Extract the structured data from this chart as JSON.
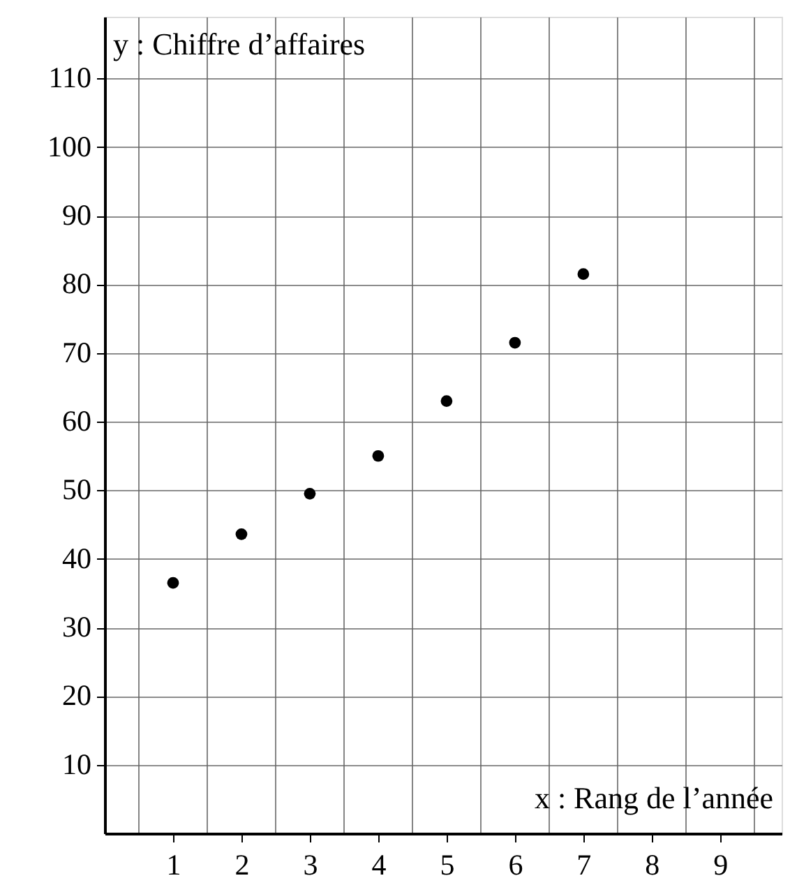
{
  "chart_data": {
    "type": "scatter",
    "xlabel": "x : Rang de l’année",
    "ylabel": "y : Chiffre d’affaires",
    "x": [
      1,
      2,
      3,
      4,
      5,
      6,
      7
    ],
    "series": [
      {
        "color": "#000000",
        "values": [
          36.5,
          43.6,
          49.5,
          55,
          63,
          71.5,
          81.5
        ]
      }
    ],
    "xlim": [
      0,
      9.9
    ],
    "ylim": [
      0,
      119
    ],
    "xticks": [
      {
        "value": 0.5,
        "label": null
      },
      1,
      {
        "value": 1.5,
        "label": null
      },
      2,
      {
        "value": 2.5,
        "label": null
      },
      3,
      {
        "value": 3.5,
        "label": null
      },
      4,
      {
        "value": 4.5,
        "label": null
      },
      5,
      {
        "value": 5.5,
        "label": null
      },
      6,
      {
        "value": 6.5,
        "label": null
      },
      7,
      {
        "value": 7.5,
        "label": null
      },
      8,
      {
        "value": 8.5,
        "label": null
      },
      9,
      {
        "value": 9.5,
        "label": null
      }
    ],
    "yticks": [
      10,
      20,
      30,
      40,
      50,
      60,
      70,
      80,
      90,
      100,
      110
    ],
    "grid": true,
    "marker": "circle"
  }
}
